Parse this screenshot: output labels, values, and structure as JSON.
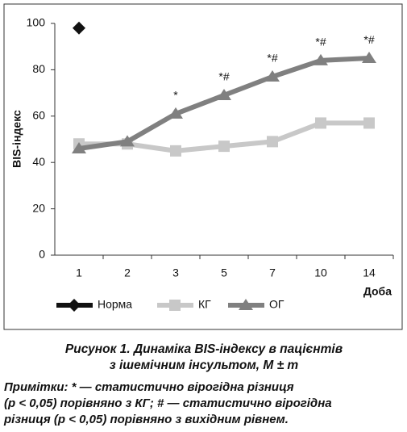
{
  "chart_data": {
    "type": "line",
    "y_label": "BIS-індекс",
    "x_label": "Доба",
    "categories": [
      "1",
      "2",
      "3",
      "5",
      "7",
      "10",
      "14"
    ],
    "series": [
      {
        "name": "Норма",
        "color": "#111111",
        "marker": "diamond",
        "line": false,
        "values": [
          98,
          null,
          null,
          null,
          null,
          null,
          null
        ]
      },
      {
        "name": "КГ",
        "color": "#c8c8c8",
        "marker": "square",
        "line": true,
        "values": [
          48,
          48,
          45,
          47,
          49,
          57,
          57
        ]
      },
      {
        "name": "ОГ",
        "color": "#808080",
        "marker": "triangle",
        "line": true,
        "values": [
          46,
          49,
          61,
          69,
          77,
          84,
          85
        ]
      }
    ],
    "annotations": [
      null,
      null,
      "*",
      "*#",
      "*#",
      "*#",
      "*#"
    ],
    "ylim": [
      0,
      100
    ],
    "yticks": [
      0,
      20,
      40,
      60,
      80,
      100
    ],
    "legend": "bottom"
  },
  "caption": [
    "Рисунок 1. Динаміка BIS-індексу в пацієнтів",
    "з ішемічним інсультом, M ± m"
  ],
  "notes": [
    "Примітки: * — статистично вірогідна різниця",
    "(p < 0,05) порівняно з КГ; # — статистично вірогідна",
    "різниця (p < 0,05) порівняно з вихідним рівнем."
  ]
}
